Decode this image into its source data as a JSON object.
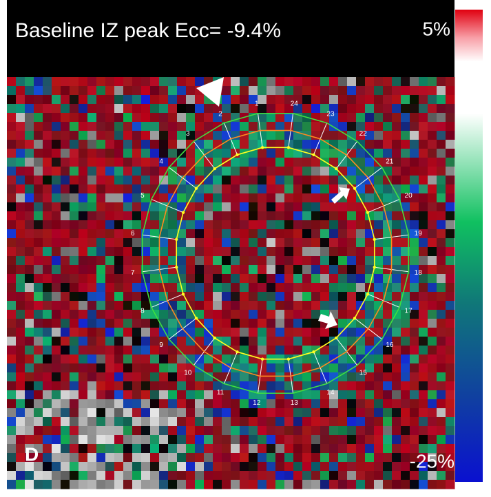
{
  "title": "Baseline IZ peak Ecc= -9.4%",
  "colorbar": {
    "max_label": "5%",
    "min_label": "-25%"
  },
  "panel_label": "D",
  "segments": [
    "1",
    "2",
    "3",
    "4",
    "5",
    "6",
    "7",
    "8",
    "9",
    "10",
    "11",
    "12",
    "13",
    "14",
    "15",
    "16",
    "17",
    "18",
    "19",
    "20",
    "21",
    "22",
    "23",
    "24"
  ]
}
